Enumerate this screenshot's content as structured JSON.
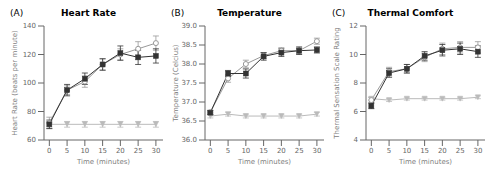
{
  "chart_data": [
    {
      "type": "line",
      "title": "Heart Rate",
      "annotation": "(A)",
      "x_label": "Time (minutes)",
      "y_label": "Heart Rate (beats per minute)",
      "x": [
        0,
        5,
        10,
        15,
        20,
        25,
        30
      ],
      "xlim": [
        -1.5,
        32
      ],
      "xticks": [
        0,
        5,
        10,
        15,
        20,
        25,
        30
      ],
      "ylim": [
        60,
        140
      ],
      "yticks": [
        60,
        80,
        100,
        120,
        140
      ],
      "grid": false,
      "series": [
        {
          "color": "#bbbbbb",
          "marker": "triangle-down",
          "values": [
            71,
            71,
            71,
            71,
            71,
            71,
            71
          ],
          "errors": [
            2,
            2,
            2,
            2,
            2,
            2,
            2
          ]
        },
        {
          "color": "#999999",
          "marker": "hollow-circle",
          "values": [
            72,
            95,
            101,
            113,
            120,
            124,
            128
          ],
          "errors": [
            4,
            3,
            4,
            4,
            4,
            5,
            5
          ]
        },
        {
          "color": "#333333",
          "marker": "square",
          "values": [
            71,
            95,
            103,
            113,
            121,
            118,
            119
          ],
          "errors": [
            3,
            4,
            4,
            4,
            5,
            5,
            5
          ]
        }
      ]
    },
    {
      "type": "line",
      "title": "Temperature",
      "annotation": "(B)",
      "x_label": "Time (minutes)",
      "y_label": "Temperature (Celcius)",
      "x": [
        0,
        5,
        10,
        15,
        20,
        25,
        30
      ],
      "xlim": [
        -1.5,
        32
      ],
      "xticks": [
        0,
        5,
        10,
        15,
        20,
        25,
        30
      ],
      "ylim": [
        36.0,
        39.0
      ],
      "yticks": [
        {
          "value": 36.0,
          "label": "36.0"
        },
        36.5,
        {
          "value": 37.0,
          "label": "37.0"
        },
        37.5,
        {
          "value": 38.0,
          "label": "38.0"
        },
        38.5,
        {
          "value": 39.0,
          "label": "39.0"
        }
      ],
      "grid": false,
      "series": [
        {
          "color": "#bbbbbb",
          "marker": "triangle-down",
          "values": [
            36.63,
            36.68,
            36.63,
            36.63,
            36.63,
            36.63,
            36.68
          ],
          "errors": [
            0.05,
            0.05,
            0.05,
            0.05,
            0.05,
            0.05,
            0.05
          ]
        },
        {
          "color": "#999999",
          "marker": "hollow-circle",
          "values": [
            36.73,
            37.62,
            38.0,
            38.22,
            38.35,
            38.35,
            38.6
          ],
          "errors": [
            0.05,
            0.1,
            0.1,
            0.08,
            0.08,
            0.08,
            0.08
          ]
        },
        {
          "color": "#333333",
          "marker": "square",
          "values": [
            36.72,
            37.75,
            37.75,
            38.2,
            38.3,
            38.35,
            38.37
          ],
          "errors": [
            0.05,
            0.08,
            0.12,
            0.1,
            0.1,
            0.1,
            0.08
          ]
        }
      ]
    },
    {
      "type": "line",
      "title": "Thermal Comfort",
      "annotation": "(C)",
      "x_label": "Time (minutes)",
      "y_label": "Thermal Sensation Scale Rating",
      "x": [
        0,
        5,
        10,
        15,
        20,
        25,
        30
      ],
      "xlim": [
        -1.5,
        32
      ],
      "xticks": [
        0,
        5,
        10,
        15,
        20,
        25,
        30
      ],
      "ylim": [
        4,
        12
      ],
      "yticks": [
        4,
        6,
        8,
        10,
        12
      ],
      "grid": false,
      "series": [
        {
          "color": "#bbbbbb",
          "marker": "triangle-down",
          "values": [
            6.9,
            6.8,
            6.9,
            6.9,
            6.9,
            6.9,
            7.0
          ],
          "errors": [
            0.1,
            0.1,
            0.1,
            0.1,
            0.1,
            0.1,
            0.1
          ]
        },
        {
          "color": "#999999",
          "marker": "hollow-circle",
          "values": [
            6.8,
            8.8,
            9.0,
            9.8,
            10.4,
            10.5,
            10.5
          ],
          "errors": [
            0.2,
            0.3,
            0.3,
            0.3,
            0.4,
            0.4,
            0.4
          ]
        },
        {
          "color": "#333333",
          "marker": "square",
          "values": [
            6.4,
            8.7,
            9.0,
            9.9,
            10.3,
            10.4,
            10.2
          ],
          "errors": [
            0.2,
            0.3,
            0.3,
            0.3,
            0.4,
            0.4,
            0.4
          ]
        }
      ]
    }
  ]
}
